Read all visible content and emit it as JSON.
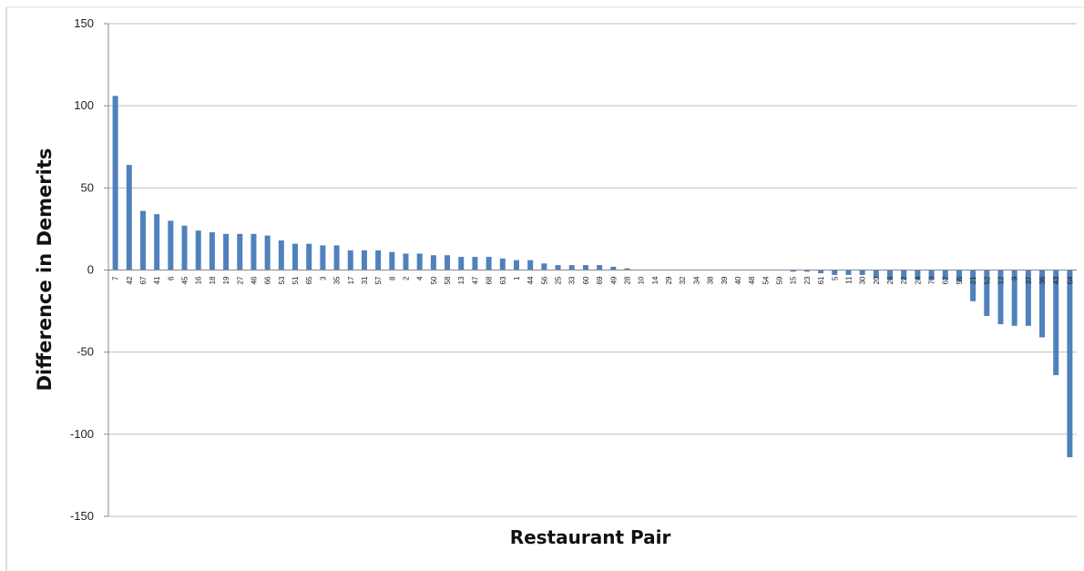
{
  "chart_data": {
    "type": "bar",
    "title": "",
    "xlabel": "Restaurant Pair",
    "ylabel": "Difference in Demerits",
    "ylim": [
      -150,
      150
    ],
    "yticks": [
      150,
      100,
      50,
      0,
      -50,
      -100,
      -150
    ],
    "grid": "horizontal",
    "legend": "none",
    "bar_color": "#4f81bd",
    "categories": [
      "7",
      "42",
      "67",
      "41",
      "6",
      "45",
      "16",
      "18",
      "19",
      "27",
      "46",
      "66",
      "53",
      "51",
      "65",
      "3",
      "35",
      "17",
      "31",
      "57",
      "8",
      "2",
      "4",
      "50",
      "58",
      "13",
      "47",
      "68",
      "63",
      "1",
      "44",
      "56",
      "25",
      "33",
      "60",
      "69",
      "49",
      "28",
      "10",
      "14",
      "29",
      "32",
      "34",
      "38",
      "39",
      "40",
      "48",
      "54",
      "59",
      "15",
      "23",
      "61",
      "5",
      "11",
      "30",
      "20",
      "26",
      "22",
      "24",
      "70",
      "62",
      "55",
      "21",
      "52",
      "12",
      "9",
      "37",
      "36",
      "43",
      "64"
    ],
    "values": [
      106,
      64,
      36,
      34,
      30,
      27,
      24,
      23,
      22,
      22,
      22,
      21,
      18,
      16,
      16,
      15,
      15,
      12,
      12,
      12,
      11,
      10,
      10,
      9,
      9,
      8,
      8,
      8,
      7,
      6,
      6,
      4,
      3,
      3,
      3,
      3,
      2,
      1,
      0,
      0,
      0,
      0,
      0,
      0,
      0,
      0,
      0,
      0,
      0,
      -1,
      -1,
      -2,
      -3,
      -3,
      -3,
      -5,
      -6,
      -6,
      -6,
      -6,
      -6,
      -7,
      -19,
      -28,
      -33,
      -34,
      -34,
      -41,
      -64,
      -114
    ]
  }
}
